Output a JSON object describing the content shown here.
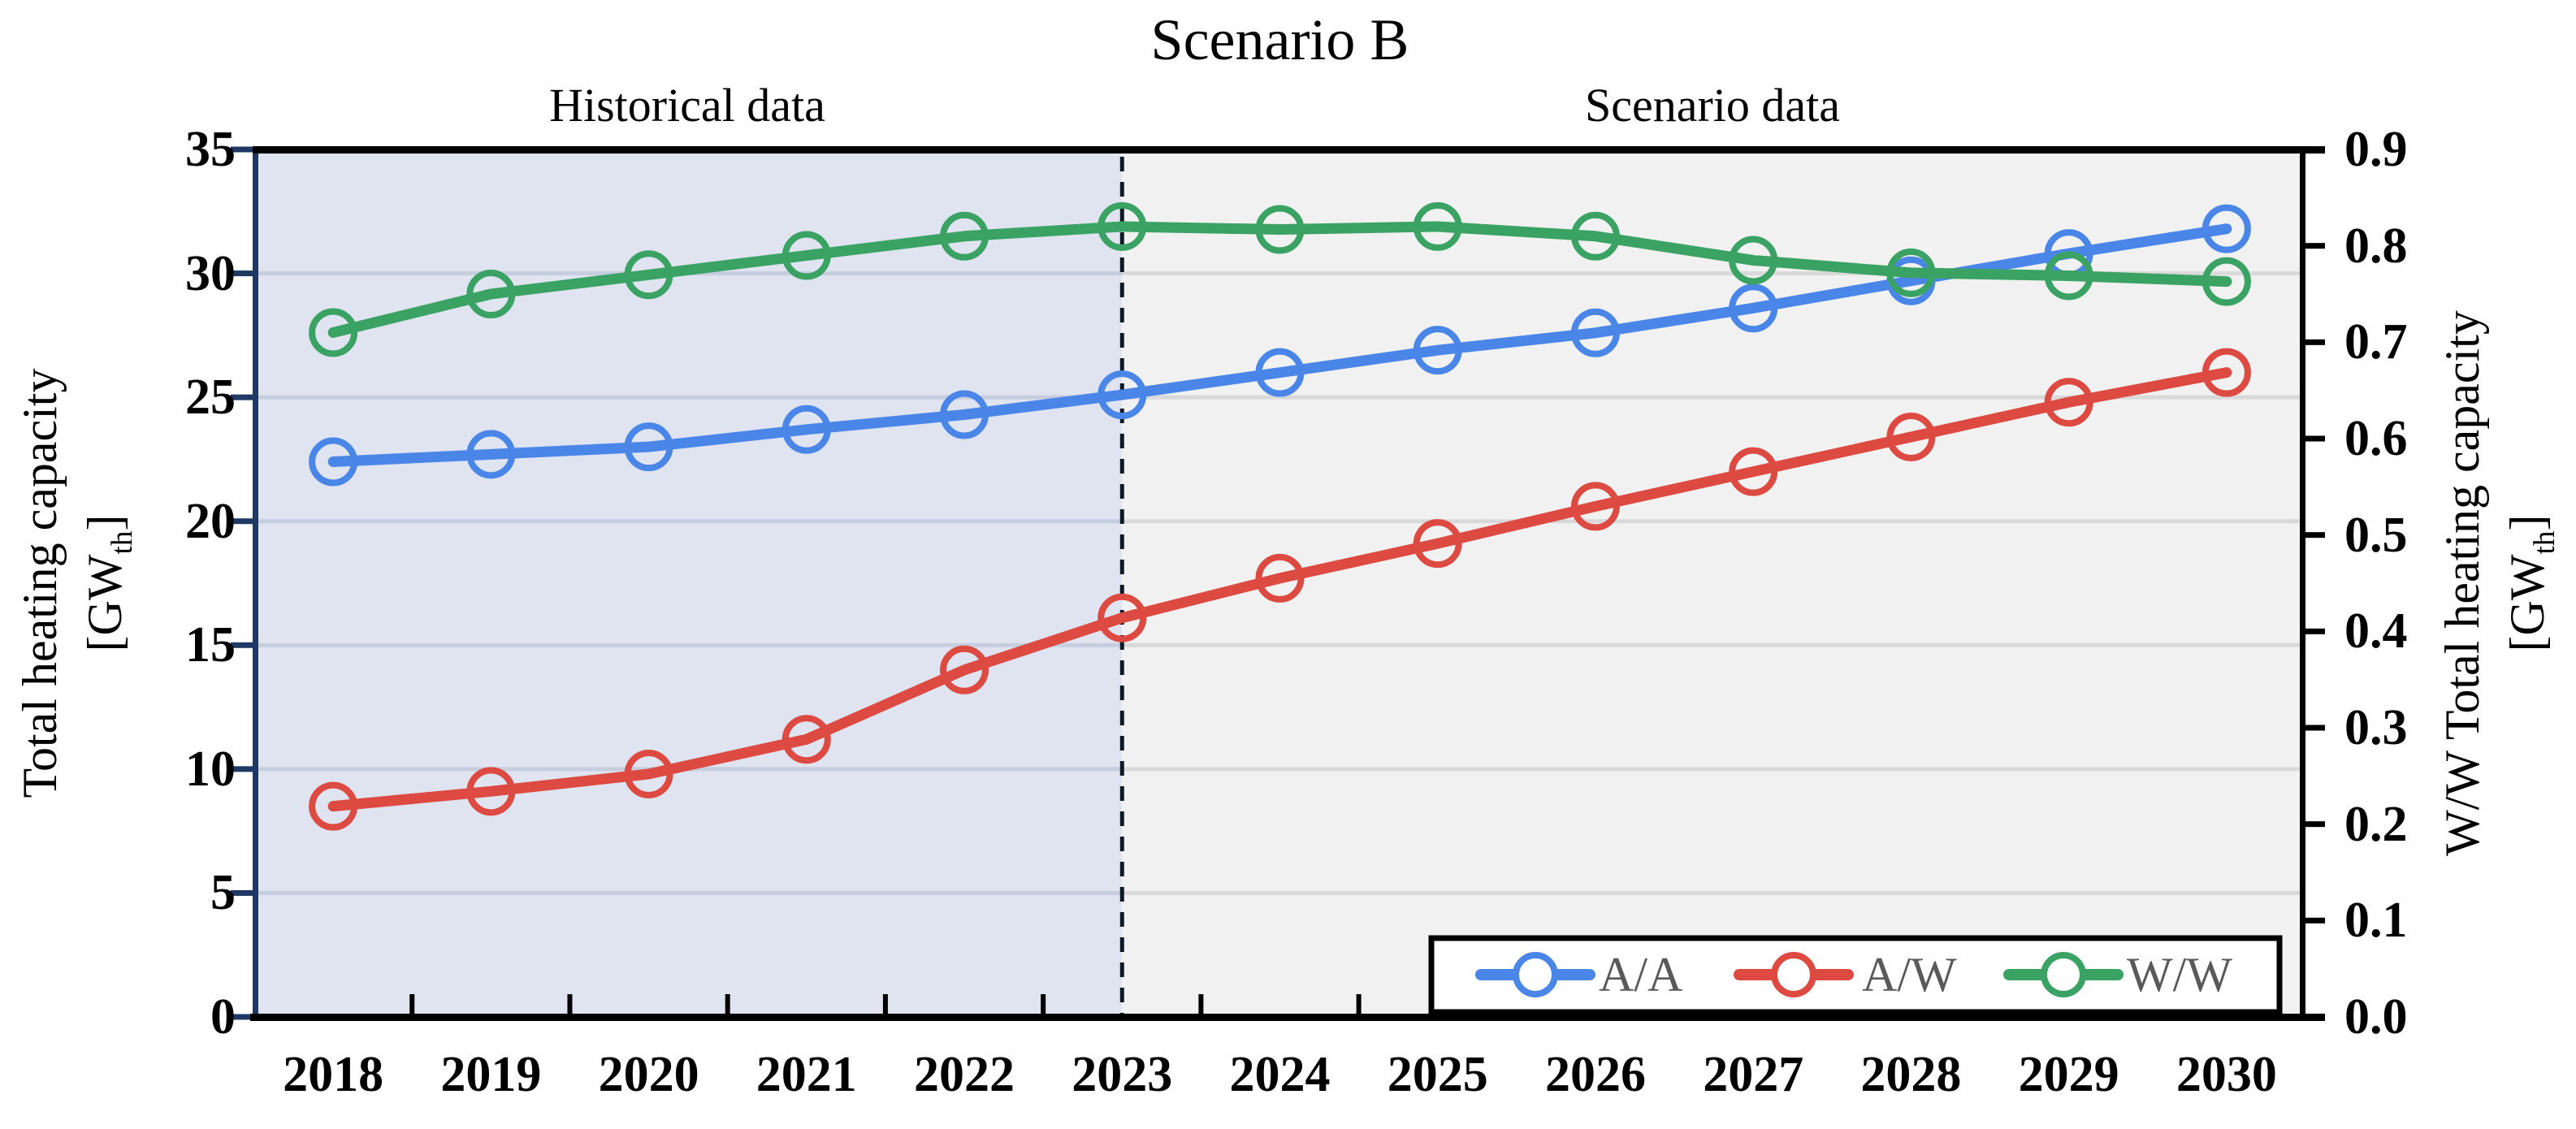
{
  "figure": {
    "title": "Scenario B",
    "region_labels": {
      "historical": "Historical data",
      "scenario": "Scenario data"
    },
    "left_axis": {
      "title": "Total heating capacity",
      "unit_pre": "[GW",
      "unit_sub": "th",
      "unit_post": "]",
      "ticks": [
        "0",
        "5",
        "10",
        "15",
        "20",
        "25",
        "30",
        "35"
      ],
      "max": 35,
      "tick_step": 5
    },
    "right_axis": {
      "title": "W/W Total heating capacity",
      "unit_pre": "[GW",
      "unit_sub": "th",
      "unit_post": "]",
      "ticks": [
        "0.0",
        "0.1",
        "0.2",
        "0.3",
        "0.4",
        "0.5",
        "0.6",
        "0.7",
        "0.8",
        "0.9"
      ],
      "max": 0.9,
      "tick_step": 0.1
    },
    "legend": [
      {
        "label": "A/A",
        "color": "#4a86e8"
      },
      {
        "label": "A/W",
        "color": "#dc4a41"
      },
      {
        "label": "W/W",
        "color": "#3aa364"
      }
    ],
    "colors": {
      "historical_bg": "#dfe4f0",
      "scenario_bg": "#f1f1f1",
      "grid_historical": "#c6cddf",
      "grid_scenario": "#d9d9d9",
      "left_axis_line": "#1f3864",
      "right_axis_line": "#000000",
      "border": "#000000",
      "dashed_divider": "#0d1a26",
      "legend_text": "#595959",
      "series_blue": "#4a86e8",
      "series_red": "#dc4a41",
      "series_green": "#3aa364"
    }
  },
  "chart_data": {
    "type": "line",
    "title": "Scenario B",
    "x": [
      "2018",
      "2019",
      "2020",
      "2021",
      "2022",
      "2023",
      "2024",
      "2025",
      "2026",
      "2027",
      "2028",
      "2029",
      "2030"
    ],
    "split_year": "2023",
    "regions": [
      {
        "label": "Historical data",
        "from": "2018",
        "to": "2023"
      },
      {
        "label": "Scenario data",
        "from": "2023",
        "to": "2030"
      }
    ],
    "left_ylabel": "Total heating capacity [GWth]",
    "right_ylabel": "W/W Total heating capacity [GWth]",
    "left_ylim": [
      0,
      35
    ],
    "right_ylim": [
      0.0,
      0.9
    ],
    "grid": true,
    "legend_position": "bottom-right-inside",
    "series": [
      {
        "name": "A/A",
        "axis": "left",
        "color": "#4a86e8",
        "values": [
          22.4,
          22.7,
          23.0,
          23.7,
          24.3,
          25.1,
          26.0,
          26.9,
          27.6,
          28.6,
          29.7,
          30.8,
          31.8
        ]
      },
      {
        "name": "A/W",
        "axis": "left",
        "color": "#dc4a41",
        "values": [
          8.5,
          9.1,
          9.8,
          11.2,
          14.0,
          16.1,
          17.7,
          19.1,
          20.6,
          22.0,
          23.4,
          24.8,
          26.0
        ]
      },
      {
        "name": "W/W",
        "axis": "right",
        "color": "#3aa364",
        "values": [
          0.71,
          0.75,
          0.77,
          0.79,
          0.81,
          0.82,
          0.817,
          0.82,
          0.81,
          0.785,
          0.772,
          0.769,
          0.763
        ]
      }
    ]
  }
}
